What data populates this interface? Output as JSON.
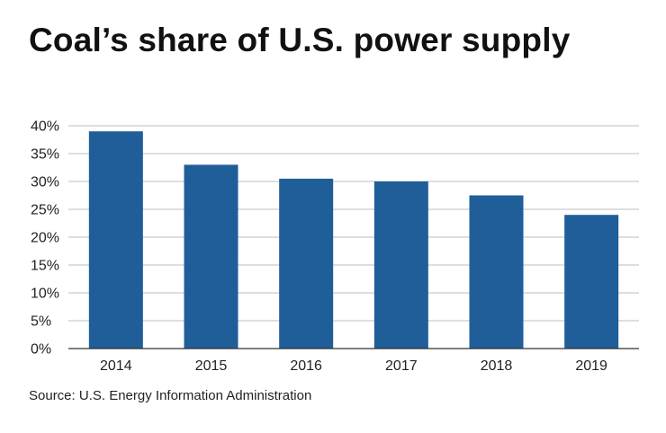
{
  "chart_data": {
    "type": "bar",
    "title": "Coal’s share of U.S. power supply",
    "source": "Source: U.S. Energy Information Administration",
    "categories": [
      "2014",
      "2015",
      "2016",
      "2017",
      "2018",
      "2019"
    ],
    "values": [
      39,
      33,
      30.5,
      30,
      27.5,
      24
    ],
    "y_ticks": [
      0,
      5,
      10,
      15,
      20,
      25,
      30,
      35,
      40
    ],
    "y_tick_labels": [
      "0%",
      "5%",
      "10%",
      "15%",
      "20%",
      "25%",
      "30%",
      "35%",
      "40%"
    ],
    "ylim": [
      0,
      40
    ],
    "xlabel": "",
    "ylabel": "",
    "grid": true,
    "legend": "none",
    "colors": {
      "bar": "#1f5e99",
      "grid": "#bdbdbd",
      "axis": "#333333"
    }
  }
}
